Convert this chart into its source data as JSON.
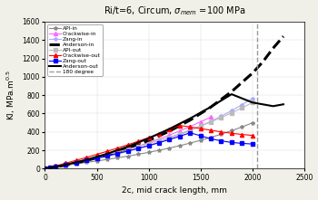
{
  "title": "Ri/t=6, Circum, $\\sigma_{mem}$ =100 MPa",
  "xlabel": "2c, mid crack length, mm",
  "ylabel": "KI, MPa.m$^{0.5}$",
  "xlim": [
    0,
    2500
  ],
  "ylim": [
    0,
    1600
  ],
  "xticks": [
    0,
    500,
    1000,
    1500,
    2000,
    2500
  ],
  "yticks": [
    0,
    200,
    400,
    600,
    800,
    1000,
    1200,
    1400,
    1600
  ],
  "series": {
    "API_in": {
      "x": [
        0,
        50,
        100,
        200,
        300,
        400,
        500,
        600,
        700,
        800,
        900,
        1000,
        1100,
        1200,
        1300,
        1400,
        1500,
        1600,
        1700,
        1800,
        1900,
        2000
      ],
      "y": [
        0,
        10,
        18,
        35,
        52,
        68,
        83,
        100,
        118,
        136,
        156,
        177,
        200,
        224,
        250,
        278,
        308,
        340,
        375,
        413,
        454,
        497
      ],
      "color": "#888888",
      "marker": "*",
      "markersize": 3,
      "linestyle": "-",
      "linewidth": 0.8,
      "label": "API-in"
    },
    "Crackwise_in": {
      "x": [
        0,
        50,
        100,
        200,
        300,
        400,
        500,
        600,
        700,
        800,
        900,
        1000,
        1100,
        1200,
        1300,
        1400,
        1500,
        1600
      ],
      "y": [
        0,
        12,
        22,
        44,
        68,
        94,
        120,
        148,
        178,
        210,
        245,
        282,
        322,
        365,
        410,
        458,
        510,
        560
      ],
      "color": "#ff66ff",
      "marker": "^",
      "markersize": 3,
      "linestyle": "-",
      "linewidth": 0.8,
      "label": "Crackwise-in"
    },
    "Zang_in": {
      "x": [
        0,
        50,
        100,
        200,
        300,
        400,
        500,
        600,
        700,
        800,
        900,
        1000,
        1100,
        1200,
        1300,
        1400,
        1500,
        1600,
        1700,
        1800,
        1900,
        2000
      ],
      "y": [
        0,
        11,
        20,
        40,
        62,
        85,
        108,
        133,
        160,
        189,
        220,
        253,
        289,
        328,
        370,
        415,
        463,
        515,
        571,
        631,
        695,
        763
      ],
      "color": "#aaaaff",
      "marker": "*",
      "markersize": 3,
      "linestyle": "-",
      "linewidth": 0.8,
      "label": "Zang-in"
    },
    "Anderson_in": {
      "x": [
        0,
        200,
        400,
        600,
        800,
        1000,
        1200,
        1400,
        1600,
        1800,
        2000,
        2100,
        2200,
        2300
      ],
      "y": [
        0,
        38,
        88,
        148,
        220,
        306,
        408,
        528,
        670,
        838,
        1038,
        1160,
        1310,
        1440
      ],
      "color": "#000000",
      "marker": "None",
      "markersize": 0,
      "linestyle": "--",
      "linewidth": 2.2,
      "label": "Anderson-in"
    },
    "API_out": {
      "x": [
        0,
        50,
        100,
        200,
        300,
        400,
        500,
        600,
        700,
        800,
        900,
        1000,
        1100,
        1200,
        1300,
        1400,
        1500,
        1600,
        1700,
        1800,
        1900,
        2000
      ],
      "y": [
        0,
        13,
        25,
        50,
        75,
        100,
        126,
        153,
        181,
        210,
        240,
        272,
        306,
        342,
        380,
        420,
        463,
        508,
        556,
        607,
        661,
        718
      ],
      "color": "#bbbbbb",
      "marker": "s",
      "markersize": 2.5,
      "linestyle": "-",
      "linewidth": 0.8,
      "label": "API-out"
    },
    "Crackwise_out": {
      "x": [
        0,
        50,
        100,
        200,
        300,
        400,
        500,
        600,
        700,
        800,
        900,
        1000,
        1100,
        1200,
        1300,
        1400,
        1500,
        1600,
        1700,
        1800,
        1900,
        2000
      ],
      "y": [
        0,
        15,
        29,
        59,
        90,
        122,
        155,
        189,
        224,
        260,
        298,
        338,
        380,
        424,
        470,
        454,
        436,
        418,
        400,
        385,
        372,
        362
      ],
      "color": "#ff0000",
      "marker": "^",
      "markersize": 3,
      "linestyle": "-",
      "linewidth": 0.8,
      "label": "Crackwise-out"
    },
    "Zang_out": {
      "x": [
        0,
        50,
        100,
        200,
        300,
        400,
        500,
        600,
        700,
        800,
        900,
        1000,
        1100,
        1200,
        1300,
        1400,
        1500,
        1600,
        1700,
        1800,
        1900,
        2000
      ],
      "y": [
        0,
        12,
        22,
        44,
        67,
        90,
        114,
        139,
        165,
        192,
        220,
        250,
        282,
        316,
        352,
        390,
        358,
        325,
        302,
        285,
        275,
        268
      ],
      "color": "#0000ff",
      "marker": "s",
      "markersize": 2.5,
      "linestyle": "-",
      "linewidth": 0.8,
      "label": "Zang-out"
    },
    "Anderson_out": {
      "x": [
        0,
        200,
        400,
        600,
        800,
        1000,
        1200,
        1400,
        1600,
        1800,
        2000,
        2200,
        2300
      ],
      "y": [
        0,
        42,
        96,
        162,
        240,
        330,
        432,
        546,
        672,
        810,
        720,
        680,
        700
      ],
      "color": "#000000",
      "marker": "None",
      "markersize": 0,
      "linestyle": "-",
      "linewidth": 1.5,
      "label": "Anderson-out"
    },
    "degree180": {
      "x": [
        2050,
        2050
      ],
      "y": [
        0,
        1600
      ],
      "color": "#999999",
      "marker": "None",
      "markersize": 0,
      "linestyle": "--",
      "linewidth": 1.0,
      "label": "180 degree"
    }
  }
}
